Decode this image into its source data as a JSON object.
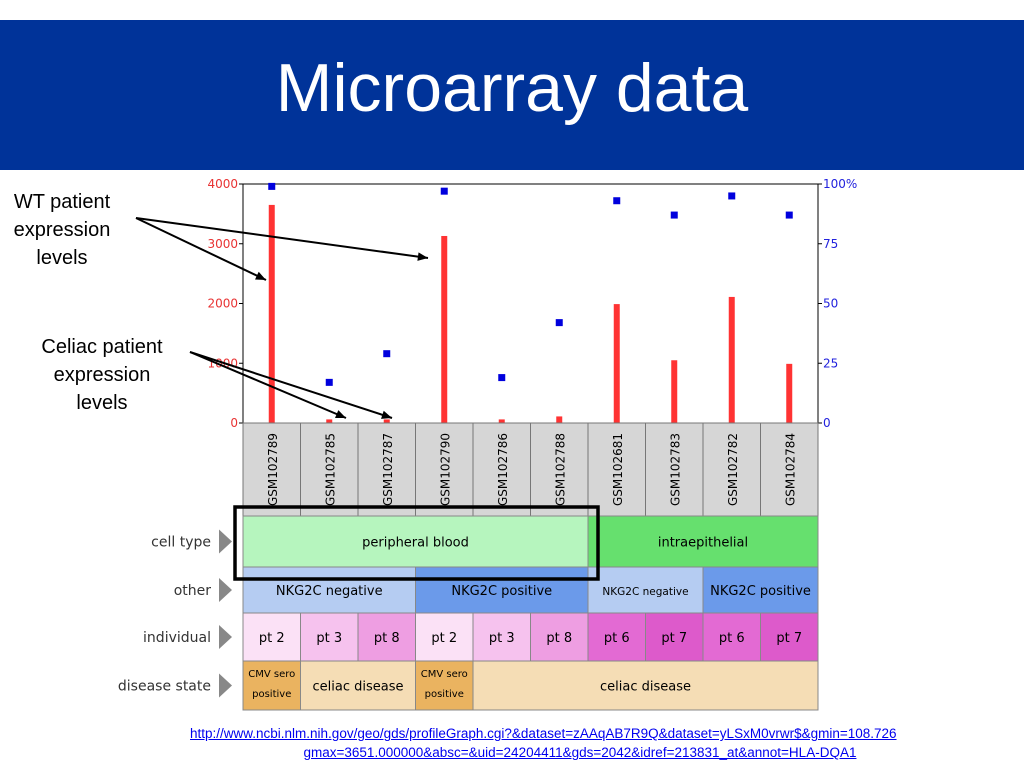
{
  "title": "Microarray data",
  "annotations": [
    {
      "lines": [
        "WT patient",
        "expression",
        "levels"
      ]
    },
    {
      "lines": [
        "Celiac patient",
        "expression",
        "levels"
      ]
    }
  ],
  "url": {
    "line1": "http://www.ncbi.nlm.nih.gov/geo/gds/profileGraph.cgi?&dataset=zAAqAB7R9Q&dataset=yLSxM0vrwr$&gmin=108.726",
    "line2": "gmax=3651.000000&absc=&uid=24204411&gds=2042&idref=213831_at&annot=HLA-DQA1"
  },
  "colors": {
    "header": "#003399",
    "bar": "#ff3333",
    "rank": "#0000dd",
    "peripheral_blood": "#b6f5be",
    "intraepithelial": "#66e06e",
    "nkg2c_negative": "#b5ccf2",
    "nkg2c_positive": "#6b9aea",
    "individual_pt2": "#fbe1f6",
    "individual_pt3": "#f6c2ee",
    "individual_pt8": "#ee9ee2",
    "individual_pt6": "#e36ad3",
    "individual_pt7": "#dd5acb",
    "cmv_sero_positive": "#eab360",
    "celiac_disease": "#f5ddb5"
  },
  "chart_data": {
    "type": "bar",
    "categories": [
      "GSM102789",
      "GSM102785",
      "GSM102787",
      "GSM102790",
      "GSM102786",
      "GSM102788",
      "GSM102681",
      "GSM102783",
      "GSM102782",
      "GSM102784"
    ],
    "series": [
      {
        "values": [
          3650,
          60,
          60,
          3130,
          60,
          110,
          1990,
          1050,
          2110,
          990
        ]
      },
      {
        "values": [
          99,
          17,
          29,
          97,
          19,
          42,
          93,
          87,
          95,
          87
        ]
      }
    ],
    "y_left": {
      "ticks": [
        "4000",
        "3000",
        "2000",
        "1000",
        "0"
      ],
      "ylim": [
        0,
        4000
      ]
    },
    "y_right": {
      "ticks": [
        "100%",
        "75",
        "50",
        "25",
        "0"
      ],
      "ylim": [
        0,
        100
      ]
    },
    "grid": false
  },
  "annotation_rows": [
    {
      "label": "cell type",
      "cells": [
        {
          "span": 6,
          "text": "peripheral blood",
          "color_key": "peripheral_blood"
        },
        {
          "span": 4,
          "text": "intraepithelial",
          "color_key": "intraepithelial"
        }
      ]
    },
    {
      "label": "other",
      "cells": [
        {
          "span": 3,
          "text": "NKG2C negative",
          "color_key": "nkg2c_negative"
        },
        {
          "span": 3,
          "text": "NKG2C positive",
          "color_key": "nkg2c_positive"
        },
        {
          "span": 2,
          "text": "NKG2C negative",
          "color_key": "nkg2c_negative",
          "small": true
        },
        {
          "span": 2,
          "text": "NKG2C positive",
          "color_key": "nkg2c_positive"
        }
      ]
    },
    {
      "label": "individual",
      "cells": [
        {
          "span": 1,
          "text": "pt 2",
          "color_key": "individual_pt2"
        },
        {
          "span": 1,
          "text": "pt 3",
          "color_key": "individual_pt3"
        },
        {
          "span": 1,
          "text": "pt 8",
          "color_key": "individual_pt8"
        },
        {
          "span": 1,
          "text": "pt 2",
          "color_key": "individual_pt2"
        },
        {
          "span": 1,
          "text": "pt 3",
          "color_key": "individual_pt3"
        },
        {
          "span": 1,
          "text": "pt 8",
          "color_key": "individual_pt8"
        },
        {
          "span": 1,
          "text": "pt 6",
          "color_key": "individual_pt6"
        },
        {
          "span": 1,
          "text": "pt 7",
          "color_key": "individual_pt7"
        },
        {
          "span": 1,
          "text": "pt 6",
          "color_key": "individual_pt6"
        },
        {
          "span": 1,
          "text": "pt 7",
          "color_key": "individual_pt7"
        }
      ]
    },
    {
      "label": "disease state",
      "cells": [
        {
          "span": 1,
          "text": "CMV sero positive",
          "color_key": "cmv_sero_positive",
          "lines": [
            "CMV sero",
            "positive"
          ]
        },
        {
          "span": 2,
          "text": "celiac disease",
          "color_key": "celiac_disease"
        },
        {
          "span": 1,
          "text": "CMV sero positive",
          "color_key": "cmv_sero_positive",
          "lines": [
            "CMV sero",
            "positive"
          ]
        },
        {
          "span": 6,
          "text": "celiac disease",
          "color_key": "celiac_disease"
        }
      ]
    }
  ]
}
